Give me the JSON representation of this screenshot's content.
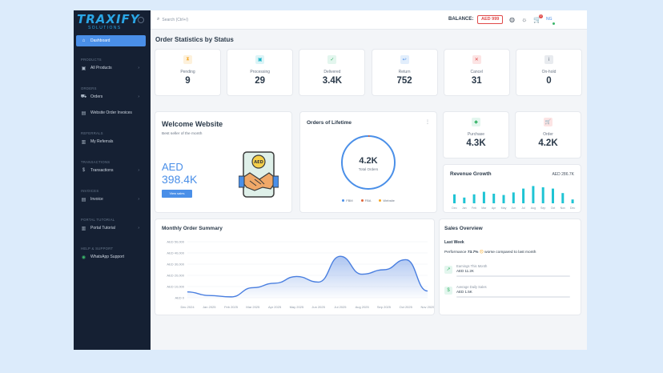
{
  "sidebar": {
    "logo": "TRAXIFY",
    "logo_sub": "SOLUTIONS",
    "items": [
      {
        "label": "Dashboard",
        "icon": "home-icon",
        "active": true
      },
      {
        "section": "PRODUCTS"
      },
      {
        "label": "All Products",
        "icon": "box-icon",
        "chevron": true
      },
      {
        "section": "ORDERS"
      },
      {
        "label": "Orders",
        "icon": "cart-icon",
        "chevron": true
      },
      {
        "label": "Website Order Invoices",
        "icon": "invoice-icon"
      },
      {
        "section": "REFERRALS"
      },
      {
        "label": "My Referrals",
        "icon": "referrals-icon"
      },
      {
        "section": "TRANSACTIONS"
      },
      {
        "label": "Transactions",
        "icon": "dollar-icon",
        "chevron": true
      },
      {
        "section": "INVOICES"
      },
      {
        "label": "Invoice",
        "icon": "invoice-icon",
        "chevron": true
      },
      {
        "section": "PORTAL TUTORIAL"
      },
      {
        "label": "Portal Tutorial",
        "icon": "book-icon",
        "chevron": true
      },
      {
        "section": "HELP & SUPPORT"
      },
      {
        "label": "WhatsApp Support",
        "icon": "whatsapp-icon"
      }
    ]
  },
  "topbar": {
    "search_placeholder": "Search (Ctrl+/)",
    "balance_label": "BALANCE:",
    "balance_value": "AED 999",
    "cart_badge": "0",
    "avatar_text": "NG"
  },
  "page_title": "Order Statistics by Status",
  "stats": [
    {
      "label": "Pending",
      "value": "9",
      "icon": "hourglass-icon",
      "color": "#f5a623",
      "bg": "#fdf1dc"
    },
    {
      "label": "Processing",
      "value": "29",
      "icon": "processing-icon",
      "color": "#1fb5c8",
      "bg": "#dcf4f7"
    },
    {
      "label": "Delivered",
      "value": "3.4K",
      "icon": "check-icon",
      "color": "#3bb56a",
      "bg": "#e3f6ee"
    },
    {
      "label": "Return",
      "value": "752",
      "icon": "return-icon",
      "color": "#4a8fe8",
      "bg": "#e2eefc"
    },
    {
      "label": "Cancel",
      "value": "31",
      "icon": "cancel-icon",
      "color": "#e04a4a",
      "bg": "#fce4e4"
    },
    {
      "label": "On-hold",
      "value": "0",
      "icon": "info-icon",
      "color": "#5a6573",
      "bg": "#e8ebef"
    }
  ],
  "welcome": {
    "title": "Welcome Website",
    "subtitle": "Best seller of the month",
    "currency": "AED",
    "amount": "398.4K",
    "button": "View sales"
  },
  "lifetime": {
    "title": "Orders of Lifetime",
    "value": "4.2K",
    "sub": "Total Orders",
    "legend": [
      {
        "name": "FBM",
        "color": "#4a8fe8"
      },
      {
        "name": "FBA",
        "color": "#e0653a"
      },
      {
        "name": "Website",
        "color": "#f5a623"
      }
    ]
  },
  "purchase": {
    "label": "Purchase",
    "value": "4.3K",
    "icon": "tag-icon",
    "color": "#3bb56a",
    "bg": "#e3f6ee"
  },
  "orders_card": {
    "label": "Order",
    "value": "4.2K",
    "icon": "cart-icon",
    "color": "#e04a4a",
    "bg": "#fce4e4"
  },
  "revenue": {
    "title": "Revenue Growth",
    "value": "AED 286.7K"
  },
  "monthly": {
    "title": "Monthly Order Summary"
  },
  "sales_overview": {
    "title": "Sales Overview",
    "period": "Last Week",
    "performance_prefix": "Performance",
    "performance_value": "73.7%",
    "performance_suffix": "worse compared to last month",
    "metrics": [
      {
        "title": "Earnings This Month",
        "value": "AED 11.2K"
      },
      {
        "title": "Average Daily Sales",
        "value": "AED 1.5K"
      }
    ]
  },
  "chart_data": [
    {
      "type": "bar",
      "categories": [
        "Dec",
        "Jan",
        "Feb",
        "Mar",
        "Apr",
        "May",
        "Jun",
        "Jul",
        "Aug",
        "Sep",
        "Oct",
        "Nov",
        "Dec"
      ],
      "values": [
        14,
        9,
        14,
        18,
        15,
        13,
        17,
        23,
        27,
        25,
        23,
        16,
        6
      ],
      "color": "#1fc4d4"
    },
    {
      "type": "area",
      "categories": [
        "Dec 2024",
        "Jan 2025",
        "Feb 2025",
        "Mar 2025",
        "Apr 2025",
        "May 2025",
        "Jun 2025",
        "Jul 2025",
        "Aug 2025",
        "Sep 2025",
        "Oct 2025",
        "Nov 2025"
      ],
      "values": [
        5200,
        2000,
        800,
        9000,
        13000,
        19000,
        14000,
        37000,
        21000,
        25000,
        34000,
        6000
      ],
      "yticks": [
        "AED 0",
        "AED 10,000",
        "AED 20,000",
        "AED 30,000",
        "AED 40,000",
        "AED 50,000"
      ],
      "ylim": [
        0,
        50000
      ],
      "color": "#4a7fe0"
    }
  ]
}
